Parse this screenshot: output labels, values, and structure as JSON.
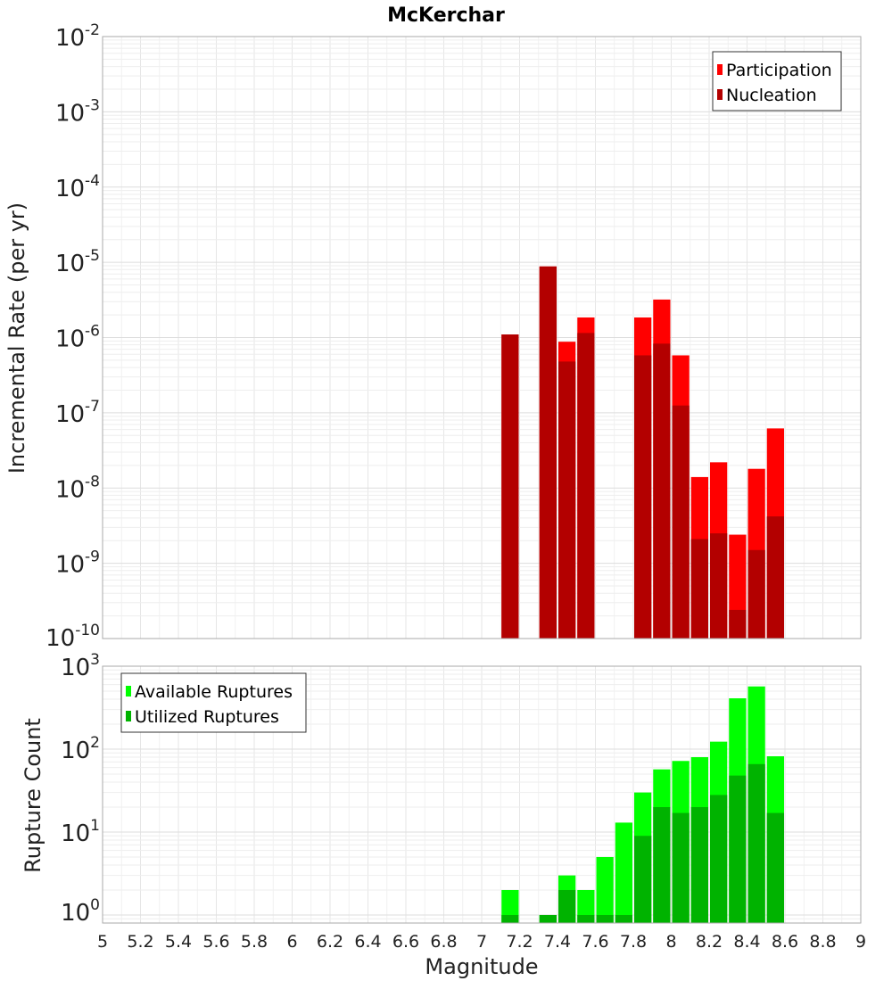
{
  "chart_data": [
    {
      "type": "bar",
      "title": "McKerchar",
      "xlabel": "",
      "ylabel": "Incremental Rate (per yr)",
      "yscale": "log",
      "ylim": [
        1e-10,
        0.01
      ],
      "xlim": [
        5,
        9
      ],
      "ytick_exponents": [
        "-2",
        "-3",
        "-4",
        "-5",
        "-6",
        "-7",
        "-8",
        "-9",
        "-10"
      ],
      "grid": true,
      "legend_position": "top-right",
      "x": [
        7.1,
        7.3,
        7.4,
        7.5,
        7.8,
        7.9,
        8.0,
        8.1,
        8.2,
        8.3,
        8.4,
        8.5
      ],
      "series": [
        {
          "name": "Participation",
          "color": "#ff0000",
          "values": [
            1.1e-06,
            8.8e-06,
            8.8e-07,
            1.85e-06,
            1.85e-06,
            3.2e-06,
            5.8e-07,
            1.4e-08,
            2.2e-08,
            2.4e-09,
            1.8e-08,
            6.2e-08
          ]
        },
        {
          "name": "Nucleation",
          "color": "#b30000",
          "values": [
            1.1e-06,
            8.8e-06,
            4.8e-07,
            1.15e-06,
            5.8e-07,
            8.3e-07,
            1.25e-07,
            2.1e-09,
            2.5e-09,
            2.4e-10,
            1.5e-09,
            4.2e-09
          ]
        }
      ]
    },
    {
      "type": "bar",
      "title": "",
      "xlabel": "Magnitude",
      "ylabel": "Rupture Count",
      "yscale": "log",
      "ylim": [
        0.8,
        1000
      ],
      "xlim": [
        5,
        9
      ],
      "ytick_exponents": [
        "3",
        "2",
        "1",
        "0"
      ],
      "xticks": [
        "5",
        "5.2",
        "5.4",
        "5.6",
        "5.8",
        "6",
        "6.2",
        "6.4",
        "6.6",
        "6.8",
        "7",
        "7.2",
        "7.4",
        "7.6",
        "7.8",
        "8",
        "8.2",
        "8.4",
        "8.6",
        "8.8",
        "9"
      ],
      "grid": true,
      "legend_position": "top-left",
      "x": [
        7.1,
        7.3,
        7.4,
        7.5,
        7.6,
        7.7,
        7.8,
        7.9,
        8.0,
        8.1,
        8.2,
        8.3,
        8.4,
        8.5
      ],
      "series": [
        {
          "name": "Available Ruptures",
          "color": "#00ff00",
          "values": [
            2,
            1,
            3,
            2,
            5,
            13,
            30,
            57,
            72,
            80,
            123,
            410,
            570,
            82
          ]
        },
        {
          "name": "Utilized Ruptures",
          "color": "#00b300",
          "values": [
            1,
            1,
            2,
            1,
            1,
            1,
            9,
            20,
            17,
            20,
            28,
            48,
            66,
            17
          ]
        }
      ]
    }
  ]
}
